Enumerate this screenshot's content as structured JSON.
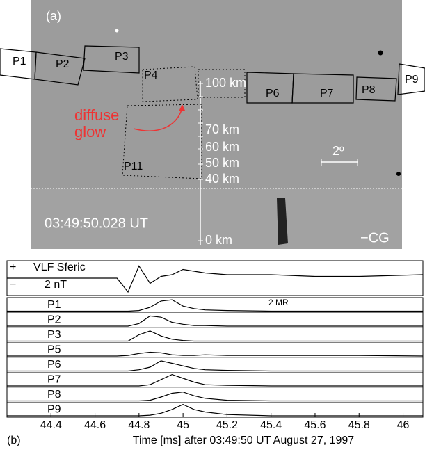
{
  "image": {
    "panel_label": "(a)",
    "annotation": [
      "diffuse",
      "glow"
    ],
    "altitudes": [
      "100 km",
      "70 km",
      "60 km",
      "50 km",
      "40 km",
      "0 km"
    ],
    "time": "03:49:50.028 UT",
    "scale": "2º",
    "event": "−CG",
    "boxes": [
      "P1",
      "P2",
      "P3",
      "P4",
      "P6",
      "P7",
      "P8",
      "P9",
      "P11"
    ]
  },
  "chart_data": {
    "type": "line",
    "panel_label": "(b)",
    "xlabel": "Time [ms] after 03:49:50 UT  August 27, 1997",
    "polarity": [
      "+",
      "−"
    ],
    "scale_labels": [
      "2 nT",
      "2 MR"
    ],
    "color": "#000000",
    "xlim": [
      44.2,
      46.09
    ],
    "xticks": [
      44.4,
      44.6,
      44.8,
      45,
      45.2,
      45.4,
      45.6,
      45.8,
      46
    ],
    "x": [
      44.2,
      44.6,
      44.7,
      44.75,
      44.8,
      44.85,
      44.9,
      44.95,
      45.0,
      45.05,
      45.1,
      45.2,
      45.4,
      45.6,
      45.8,
      46.09
    ],
    "series": [
      {
        "name": "VLF Sferic",
        "values": [
          0,
          0,
          0,
          -0.8,
          0.7,
          -0.3,
          0.1,
          0.2,
          0.5,
          0.4,
          0.3,
          0.2,
          0.2,
          0.1,
          0.1,
          0.2
        ]
      },
      {
        "name": "P1",
        "values": [
          0,
          0,
          0,
          0,
          0.05,
          0.3,
          0.8,
          0.9,
          0.4,
          0.2,
          0.1,
          0.05,
          0,
          0,
          0,
          0
        ]
      },
      {
        "name": "P2",
        "values": [
          0,
          0,
          0,
          0,
          0.2,
          0.8,
          0.7,
          0.3,
          0.15,
          0.05,
          0.05,
          0,
          0,
          0,
          0,
          0
        ]
      },
      {
        "name": "P3",
        "values": [
          0,
          0,
          0,
          0,
          0.5,
          0.8,
          0.4,
          0.15,
          0.05,
          0,
          0,
          0,
          0,
          0,
          0,
          0
        ]
      },
      {
        "name": "P5",
        "values": [
          0,
          0,
          0,
          0.05,
          0.2,
          0.3,
          0.25,
          0.1,
          0.05,
          0.05,
          0.1,
          0.05,
          0.05,
          0.05,
          0.05,
          0
        ]
      },
      {
        "name": "P6",
        "values": [
          0,
          0,
          0,
          0,
          0.1,
          0.3,
          0.8,
          0.6,
          0.4,
          0.2,
          0.1,
          0.05,
          0,
          0,
          0,
          0
        ]
      },
      {
        "name": "P7",
        "values": [
          0,
          0,
          0,
          0,
          0,
          0.1,
          0.5,
          0.9,
          0.6,
          0.3,
          0.1,
          0.05,
          0,
          0,
          0,
          0
        ]
      },
      {
        "name": "P8",
        "values": [
          0,
          0,
          0,
          0,
          0,
          0.05,
          0.3,
          0.6,
          0.7,
          0.4,
          0.2,
          0.05,
          0,
          0,
          0,
          0
        ]
      },
      {
        "name": "P9",
        "values": [
          0,
          0,
          0,
          0,
          0,
          0.05,
          0.2,
          0.5,
          0.9,
          0.5,
          0.3,
          0.1,
          0,
          0,
          0,
          0
        ]
      }
    ]
  }
}
